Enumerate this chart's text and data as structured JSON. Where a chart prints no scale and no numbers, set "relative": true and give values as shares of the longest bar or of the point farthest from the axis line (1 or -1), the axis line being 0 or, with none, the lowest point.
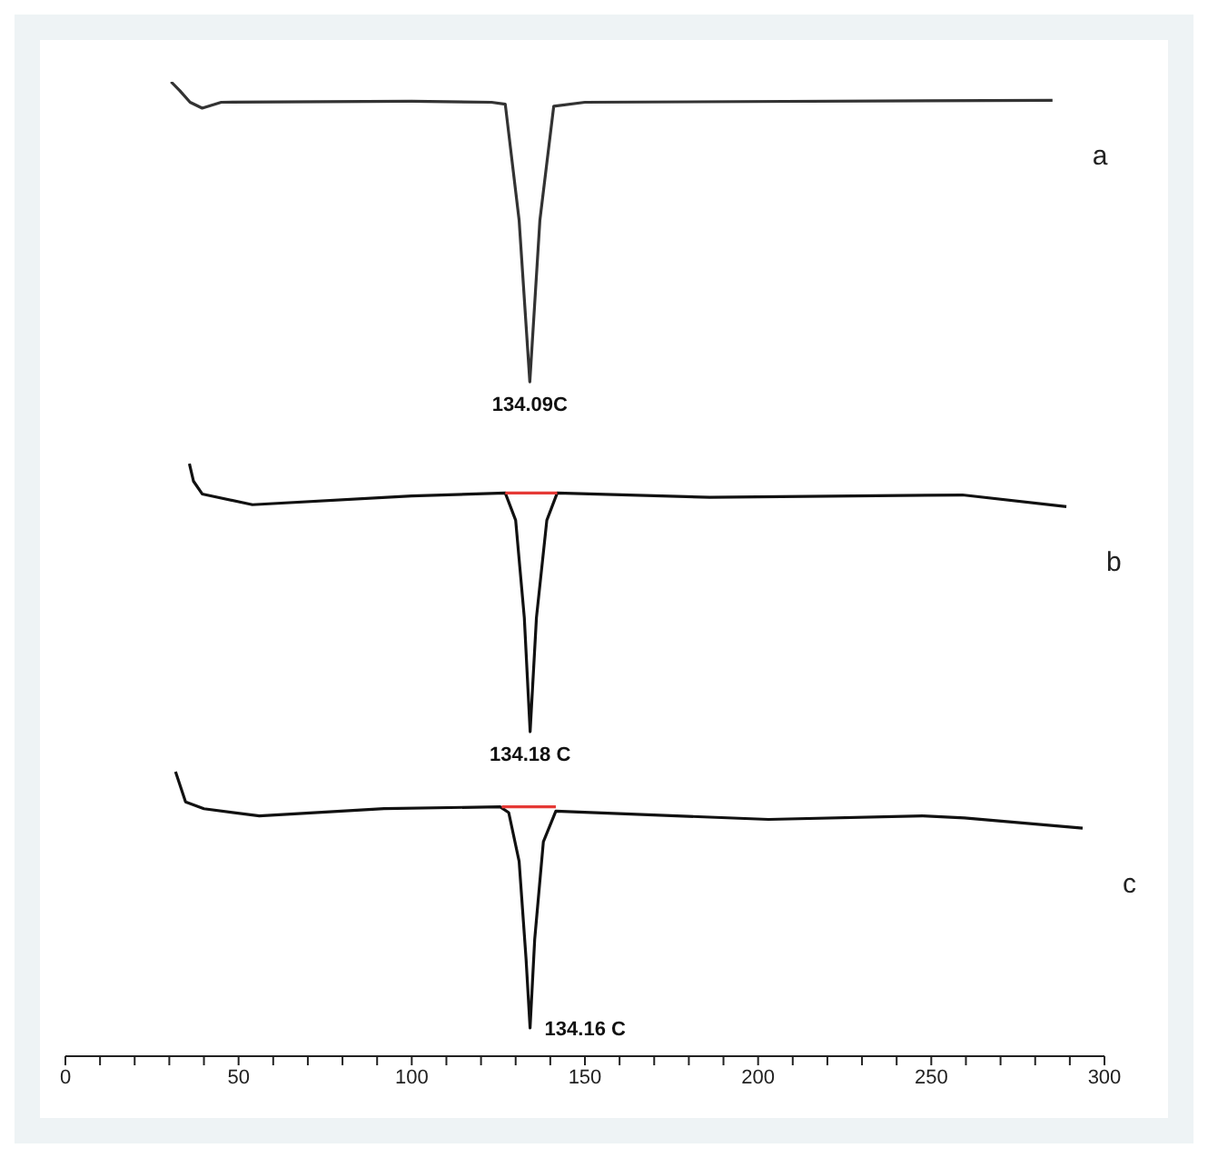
{
  "chart_data": {
    "type": "line",
    "relative": true,
    "grid": false,
    "legend": false,
    "marker": "none",
    "line_style": "solid",
    "tick_labels": "x",
    "xlim": [
      0,
      300
    ],
    "xticks": [
      0,
      {
        "value": 10,
        "label": null
      },
      {
        "value": 20,
        "label": null
      },
      {
        "value": 30,
        "label": null
      },
      {
        "value": 40,
        "label": null
      },
      50,
      {
        "value": 60,
        "label": null
      },
      {
        "value": 70,
        "label": null
      },
      {
        "value": 80,
        "label": null
      },
      {
        "value": 90,
        "label": null
      },
      100,
      {
        "value": 110,
        "label": null
      },
      {
        "value": 120,
        "label": null
      },
      {
        "value": 130,
        "label": null
      },
      {
        "value": 140,
        "label": null
      },
      150,
      {
        "value": 160,
        "label": null
      },
      {
        "value": 170,
        "label": null
      },
      {
        "value": 180,
        "label": null
      },
      {
        "value": 190,
        "label": null
      },
      200,
      {
        "value": 210,
        "label": null
      },
      {
        "value": 220,
        "label": null
      },
      {
        "value": 230,
        "label": null
      },
      {
        "value": 240,
        "label": null
      },
      250,
      {
        "value": 260,
        "label": null
      },
      {
        "value": 270,
        "label": null
      },
      {
        "value": 280,
        "label": null
      },
      {
        "value": 290,
        "label": null
      },
      300
    ],
    "series": [
      {
        "name": "a",
        "color": "#333333",
        "x": [
          30.5,
          33,
          36,
          39.5,
          45,
          100,
          123,
          127,
          131,
          134.09,
          137,
          141,
          150,
          285
        ],
        "values": [
          1.0,
          0.991,
          0.979,
          0.973,
          0.979,
          0.98,
          0.979,
          0.977,
          0.858,
          0.692,
          0.858,
          0.975,
          0.979,
          0.981
        ]
      },
      {
        "name": "b",
        "color": "#111111",
        "x": [
          35.8,
          37,
          39.5,
          54,
          100,
          127,
          130,
          132.5,
          134.18,
          136,
          139,
          142,
          186,
          259,
          289
        ],
        "values": [
          0.608,
          0.59,
          0.577,
          0.566,
          0.575,
          0.578,
          0.55,
          0.45,
          0.333,
          0.45,
          0.55,
          0.578,
          0.5735,
          0.576,
          0.564
        ]
      },
      {
        "name": "c",
        "color": "#111111",
        "x": [
          31.8,
          34.7,
          40,
          56,
          92,
          125.5,
          128,
          131,
          133,
          134.16,
          135.5,
          138,
          141.6,
          203,
          247.5,
          259.6,
          293.7
        ],
        "values": [
          0.292,
          0.261,
          0.254,
          0.2466,
          0.254,
          0.256,
          0.25,
          0.2,
          0.1,
          0.029,
          0.12,
          0.22,
          0.2515,
          0.243,
          0.2466,
          0.2445,
          0.234
        ]
      },
      {
        "color": "#e53935",
        "x": [
          127,
          142
        ],
        "values": [
          0.578,
          0.578
        ]
      },
      {
        "color": "#e53935",
        "x": [
          126,
          141.6
        ],
        "values": [
          0.256,
          0.256
        ]
      }
    ],
    "annotations": [
      {
        "text": "134.09C",
        "x": 134.09,
        "y": 0.692
      },
      {
        "text": "134.18 C",
        "x": 134.18,
        "y": 0.333
      },
      {
        "text": "134.16 C",
        "x": 134.16,
        "y": 0.029
      }
    ]
  }
}
